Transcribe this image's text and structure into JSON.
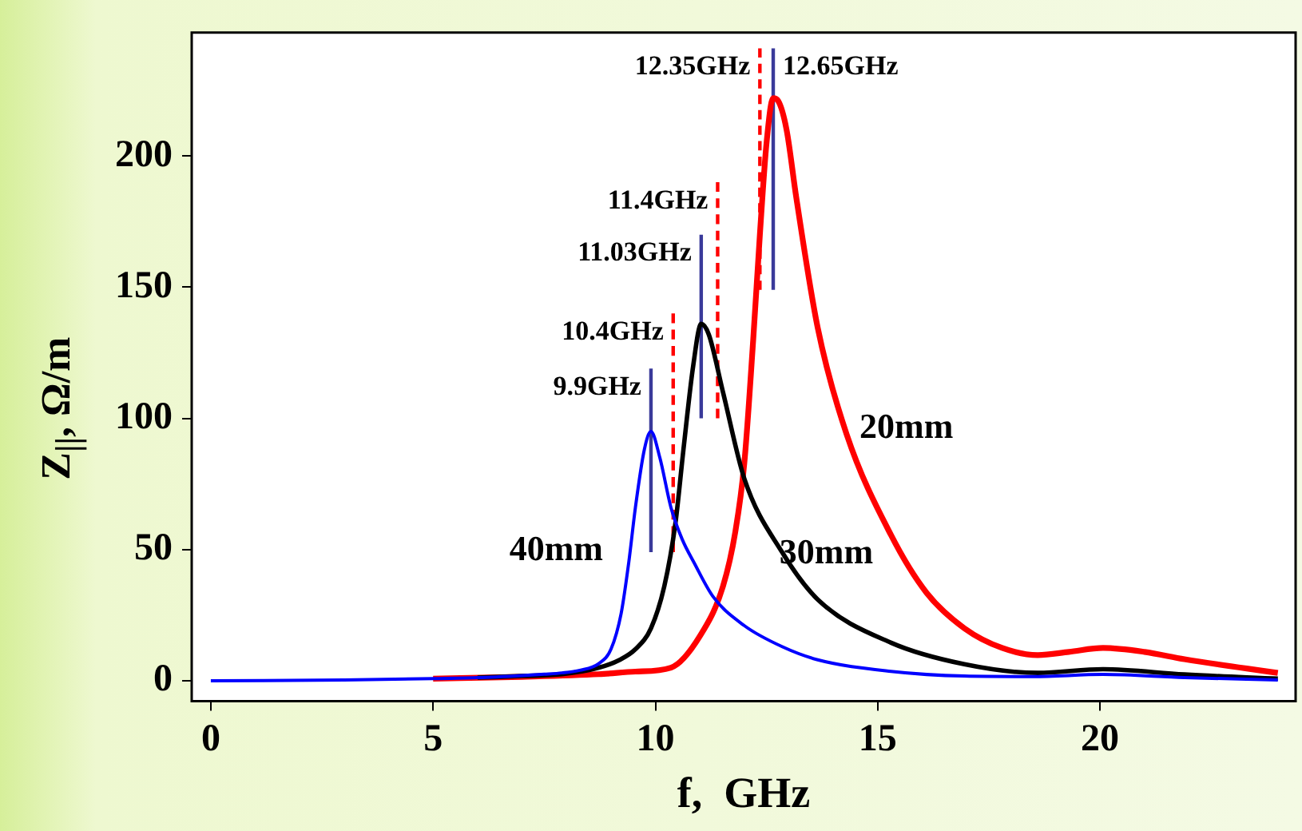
{
  "chart_data": {
    "type": "line",
    "xlabel": "f,  GHz",
    "ylabel": "Z$_{||}$,  Ω/m",
    "xlim": [
      -0.43,
      24.4
    ],
    "ylim": [
      -7.8,
      247
    ],
    "xticks": [
      0,
      5,
      10,
      15,
      20
    ],
    "yticks": [
      0,
      50,
      100,
      150,
      200
    ],
    "grid": false,
    "legend": false,
    "marker": "none",
    "series": [
      {
        "name": "40mm",
        "color": "#0000ff",
        "x": [
          0,
          3,
          5,
          6,
          7,
          7.5,
          7.9,
          8.3,
          8.73,
          9.0,
          9.23,
          9.4,
          9.55,
          9.75,
          9.9,
          10.1,
          10.35,
          10.6,
          10.87,
          11.3,
          12.0,
          12.85,
          13.65,
          15.3,
          16.95,
          18.5,
          20.07,
          21.9,
          24
        ],
        "values": [
          0,
          0.3,
          0.8,
          1.2,
          2,
          2.5,
          3,
          4,
          6.6,
          12,
          25.7,
          45,
          66,
          88,
          95,
          85,
          66,
          54,
          45,
          32,
          21,
          13,
          8,
          3.6,
          1.8,
          1.6,
          2.4,
          1.2,
          0.3
        ]
      },
      {
        "name": "30mm",
        "color": "#000000",
        "x": [
          6,
          7,
          7.9,
          8.73,
          9.2,
          9.55,
          9.9,
          10.2,
          10.45,
          10.63,
          10.85,
          11.03,
          11.2,
          11.52,
          12.0,
          12.85,
          13.65,
          15.3,
          16.95,
          18.6,
          20.07,
          21.9,
          24
        ],
        "values": [
          1.2,
          1.8,
          2.5,
          5,
          8,
          12,
          20,
          36,
          60,
          88,
          120,
          136,
          132,
          110,
          77,
          49,
          31,
          14.5,
          6.3,
          3,
          4.4,
          2.4,
          0.8
        ]
      },
      {
        "name": "20mm",
        "color": "#ff0000",
        "x": [
          5,
          7,
          8.73,
          9.55,
          10.35,
          11.0,
          11.52,
          11.8,
          12.0,
          12.2,
          12.35,
          12.5,
          12.65,
          12.76,
          12.95,
          13.17,
          13.65,
          14.3,
          15.3,
          16.1,
          16.95,
          17.8,
          18.6,
          19.3,
          20.07,
          21.0,
          21.9,
          24
        ],
        "values": [
          0.8,
          1.5,
          2.5,
          3.5,
          5,
          17,
          36,
          57,
          83,
          130,
          170,
          205,
          222,
          221,
          210,
          184,
          134.6,
          94,
          55.5,
          33.5,
          20,
          12.5,
          9.8,
          11,
          12.5,
          11,
          8.2,
          3
        ]
      },
      {
        "type": "line",
        "color": "#3a3a9a",
        "x": [
          9.9,
          9.9
        ],
        "values": [
          49,
          119
        ]
      },
      {
        "type": "line",
        "color": "#3a3a9a",
        "x": [
          11.03,
          11.03
        ],
        "values": [
          100,
          170
        ]
      },
      {
        "type": "line",
        "color": "#3a3a9a",
        "x": [
          12.65,
          12.65
        ],
        "values": [
          149,
          241
        ]
      },
      {
        "type": "line",
        "color": "#ff0000",
        "line_style": "dashed",
        "x": [
          10.4,
          10.4
        ],
        "values": [
          49,
          140
        ]
      },
      {
        "type": "line",
        "color": "#ff0000",
        "line_style": "dashed",
        "x": [
          11.4,
          11.4
        ],
        "values": [
          100,
          190
        ]
      },
      {
        "type": "line",
        "color": "#ff0000",
        "line_style": "dashed",
        "x": [
          12.35,
          12.35
        ],
        "values": [
          149,
          241
        ]
      }
    ],
    "annotations": [
      {
        "text": "9.9GHz",
        "x": 9.9,
        "y": 119
      },
      {
        "text": "10.4GHz",
        "x": 10.4,
        "y": 140
      },
      {
        "text": "11.03GHz",
        "x": 11.03,
        "y": 170
      },
      {
        "text": "11.4GHz",
        "x": 11.4,
        "y": 190
      },
      {
        "text": "12.35GHz",
        "x": 12.35,
        "y": 241
      },
      {
        "text": "12.65GHz",
        "x": 12.65,
        "y": 241
      }
    ]
  }
}
